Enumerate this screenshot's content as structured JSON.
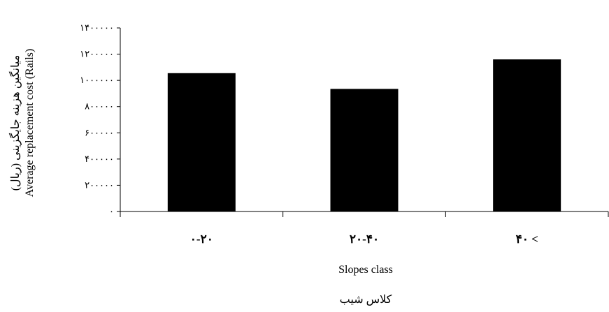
{
  "chart_data": {
    "type": "bar",
    "categories": [
      "۰-۲۰",
      "۲۰-۴۰",
      "۴۰ <"
    ],
    "values": [
      1055000,
      935000,
      1160000
    ],
    "ylim": [
      0,
      1400000
    ],
    "yticks": [
      0,
      200000,
      400000,
      600000,
      800000,
      1000000,
      1200000,
      1400000
    ],
    "ytick_labels": [
      "۰",
      "۲۰۰۰۰۰",
      "۴۰۰۰۰۰",
      "۶۰۰۰۰۰",
      "۸۰۰۰۰۰",
      "۱۰۰۰۰۰۰",
      "۱۲۰۰۰۰۰",
      "۱۴۰۰۰۰۰"
    ],
    "xlabel": "Slopes class",
    "xlabel_fa": "کلاس شیب",
    "ylabel": "Average replacement cost (Rails)",
    "ylabel_fa": "میانگین هزینه جایگزینی (ریال)",
    "grid": false,
    "bar_color": "#000000"
  }
}
